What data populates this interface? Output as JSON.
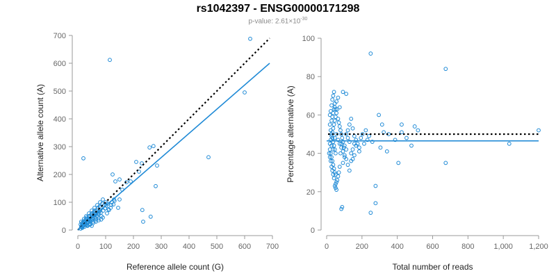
{
  "chart": {
    "title": "rs1042397 - ENSG00000171298",
    "subtitle_prefix": "p-value: 2.61×10",
    "subtitle_exp": "-30"
  },
  "colors": {
    "points": "#1f8ad6",
    "fit": "#1f8ad6",
    "reference": "#000000",
    "axis": "#9a9a9a"
  },
  "chart_data": [
    {
      "type": "scatter",
      "xlabel": "Reference allele count (G)",
      "ylabel": "Alternative allele count (A)",
      "xlim": [
        0,
        700
      ],
      "ylim": [
        0,
        700
      ],
      "x_ticks": [
        "0",
        "100",
        "200",
        "300",
        "400",
        "500",
        "600",
        "700"
      ],
      "y_ticks": [
        "0",
        "100",
        "200",
        "300",
        "400",
        "500",
        "600",
        "700"
      ],
      "fit_line": [
        [
          0,
          0
        ],
        [
          690,
          600
        ]
      ],
      "reference_line": [
        [
          0,
          0
        ],
        [
          690,
          690
        ]
      ],
      "points": [
        [
          115,
          612
        ],
        [
          620,
          688
        ],
        [
          600,
          495
        ],
        [
          470,
          262
        ],
        [
          20,
          258
        ],
        [
          125,
          200
        ],
        [
          150,
          182
        ],
        [
          135,
          175
        ],
        [
          175,
          172
        ],
        [
          210,
          245
        ],
        [
          230,
          240
        ],
        [
          258,
          297
        ],
        [
          272,
          302
        ],
        [
          285,
          232
        ],
        [
          280,
          158
        ],
        [
          235,
          30
        ],
        [
          232,
          72
        ],
        [
          262,
          48
        ],
        [
          220,
          210
        ],
        [
          190,
          175
        ],
        [
          160,
          145
        ],
        [
          150,
          110
        ],
        [
          145,
          80
        ],
        [
          100,
          100
        ],
        [
          95,
          90
        ],
        [
          120,
          90
        ],
        [
          110,
          75
        ],
        [
          130,
          110
        ],
        [
          105,
          60
        ],
        [
          90,
          45
        ],
        [
          80,
          70
        ],
        [
          75,
          60
        ],
        [
          70,
          50
        ],
        [
          65,
          40
        ],
        [
          60,
          55
        ],
        [
          55,
          45
        ],
        [
          50,
          35
        ],
        [
          45,
          30
        ],
        [
          40,
          38
        ],
        [
          35,
          25
        ],
        [
          30,
          20
        ],
        [
          25,
          18
        ],
        [
          20,
          15
        ],
        [
          15,
          10
        ],
        [
          10,
          5
        ],
        [
          12,
          12
        ],
        [
          18,
          22
        ],
        [
          22,
          28
        ],
        [
          28,
          32
        ],
        [
          32,
          28
        ],
        [
          38,
          42
        ],
        [
          42,
          48
        ],
        [
          48,
          55
        ],
        [
          52,
          40
        ],
        [
          58,
          65
        ],
        [
          62,
          45
        ],
        [
          68,
          72
        ],
        [
          72,
          58
        ],
        [
          78,
          85
        ],
        [
          82,
          62
        ],
        [
          88,
          95
        ],
        [
          92,
          70
        ],
        [
          98,
          78
        ],
        [
          102,
          88
        ],
        [
          108,
          95
        ],
        [
          112,
          72
        ],
        [
          118,
          80
        ],
        [
          122,
          100
        ],
        [
          128,
          92
        ],
        [
          132,
          105
        ],
        [
          15,
          25
        ],
        [
          25,
          35
        ],
        [
          35,
          15
        ],
        [
          45,
          20
        ],
        [
          55,
          25
        ],
        [
          65,
          30
        ],
        [
          75,
          35
        ],
        [
          85,
          50
        ],
        [
          16,
          8
        ],
        [
          24,
          12
        ],
        [
          34,
          18
        ],
        [
          44,
          22
        ],
        [
          54,
          30
        ],
        [
          64,
          35
        ],
        [
          74,
          42
        ],
        [
          84,
          38
        ],
        [
          10,
          20
        ],
        [
          20,
          30
        ],
        [
          30,
          40
        ],
        [
          40,
          50
        ],
        [
          50,
          60
        ],
        [
          60,
          70
        ],
        [
          40,
          20
        ],
        [
          50,
          15
        ],
        [
          14,
          16
        ],
        [
          18,
          14
        ],
        [
          26,
          24
        ],
        [
          36,
          30
        ],
        [
          46,
          42
        ],
        [
          56,
          50
        ],
        [
          66,
          58
        ],
        [
          76,
          66
        ],
        [
          30,
          50
        ],
        [
          40,
          60
        ],
        [
          50,
          70
        ],
        [
          60,
          80
        ],
        [
          70,
          90
        ],
        [
          80,
          100
        ],
        [
          90,
          110
        ],
        [
          12,
          30
        ],
        [
          22,
          40
        ],
        [
          32,
          45
        ],
        [
          42,
          35
        ],
        [
          52,
          52
        ],
        [
          62,
          62
        ],
        [
          72,
          78
        ],
        [
          82,
          82
        ]
      ]
    },
    {
      "type": "scatter",
      "xlabel": "Total number of reads",
      "ylabel": "Percentage alternative (A)",
      "xlim": [
        0,
        1300
      ],
      "ylim": [
        0,
        100
      ],
      "x_ticks": [
        "0",
        "200",
        "400",
        "600",
        "800",
        "1,000",
        "1,200"
      ],
      "y_ticks": [
        "0",
        "20",
        "40",
        "60",
        "80",
        "100"
      ],
      "fit_y": 46.5,
      "reference_y": 50,
      "points": [
        [
          270,
          92
        ],
        [
          730,
          84
        ],
        [
          1300,
          52
        ],
        [
          1120,
          45
        ],
        [
          730,
          35
        ],
        [
          440,
          35
        ],
        [
          300,
          14
        ],
        [
          270,
          9
        ],
        [
          300,
          23
        ],
        [
          90,
          11
        ],
        [
          95,
          12
        ],
        [
          120,
          71
        ],
        [
          100,
          72
        ],
        [
          60,
          21
        ],
        [
          55,
          22
        ],
        [
          320,
          60
        ],
        [
          340,
          55
        ],
        [
          350,
          51
        ],
        [
          460,
          55
        ],
        [
          460,
          51
        ],
        [
          540,
          54
        ],
        [
          560,
          52
        ],
        [
          490,
          48
        ],
        [
          420,
          47
        ],
        [
          380,
          50
        ],
        [
          520,
          44
        ],
        [
          370,
          41
        ],
        [
          330,
          43
        ],
        [
          280,
          46
        ],
        [
          250,
          47
        ],
        [
          230,
          45
        ],
        [
          210,
          48
        ],
        [
          200,
          41
        ],
        [
          180,
          44
        ],
        [
          170,
          39
        ],
        [
          160,
          37
        ],
        [
          150,
          36
        ],
        [
          140,
          46
        ],
        [
          130,
          48
        ],
        [
          120,
          42
        ],
        [
          110,
          38
        ],
        [
          105,
          43
        ],
        [
          100,
          35
        ],
        [
          90,
          45
        ],
        [
          85,
          40
        ],
        [
          80,
          33
        ],
        [
          75,
          30
        ],
        [
          70,
          28
        ],
        [
          65,
          26
        ],
        [
          60,
          25
        ],
        [
          55,
          24
        ],
        [
          50,
          23
        ],
        [
          45,
          27
        ],
        [
          40,
          29
        ],
        [
          35,
          31
        ],
        [
          30,
          33
        ],
        [
          25,
          36
        ],
        [
          20,
          38
        ],
        [
          15,
          40
        ],
        [
          20,
          45
        ],
        [
          25,
          47
        ],
        [
          30,
          49
        ],
        [
          35,
          51
        ],
        [
          40,
          53
        ],
        [
          45,
          55
        ],
        [
          50,
          57
        ],
        [
          55,
          59
        ],
        [
          60,
          61
        ],
        [
          65,
          63
        ],
        [
          70,
          58
        ],
        [
          75,
          56
        ],
        [
          80,
          54
        ],
        [
          85,
          52
        ],
        [
          90,
          50
        ],
        [
          95,
          48
        ],
        [
          100,
          46
        ],
        [
          110,
          44
        ],
        [
          120,
          50
        ],
        [
          130,
          52
        ],
        [
          140,
          55
        ],
        [
          150,
          58
        ],
        [
          160,
          53
        ],
        [
          170,
          49
        ],
        [
          180,
          47
        ],
        [
          190,
          45
        ],
        [
          200,
          43
        ],
        [
          220,
          50
        ],
        [
          240,
          52
        ],
        [
          260,
          49
        ],
        [
          20,
          60
        ],
        [
          25,
          62
        ],
        [
          30,
          65
        ],
        [
          35,
          68
        ],
        [
          40,
          70
        ],
        [
          45,
          72
        ],
        [
          50,
          66
        ],
        [
          55,
          63
        ],
        [
          20,
          55
        ],
        [
          25,
          52
        ],
        [
          30,
          50
        ],
        [
          35,
          48
        ],
        [
          40,
          46
        ],
        [
          45,
          44
        ],
        [
          50,
          42
        ],
        [
          55,
          40
        ],
        [
          20,
          42
        ],
        [
          25,
          40
        ],
        [
          30,
          38
        ],
        [
          35,
          36
        ],
        [
          40,
          34
        ],
        [
          45,
          32
        ],
        [
          50,
          30
        ],
        [
          55,
          29
        ],
        [
          30,
          57
        ],
        [
          35,
          59
        ],
        [
          40,
          61
        ],
        [
          45,
          63
        ],
        [
          50,
          64
        ],
        [
          60,
          67
        ],
        [
          70,
          69
        ],
        [
          80,
          64
        ],
        [
          30,
          44
        ],
        [
          40,
          42
        ],
        [
          50,
          48
        ],
        [
          60,
          50
        ],
        [
          70,
          47
        ],
        [
          80,
          45
        ],
        [
          90,
          43
        ],
        [
          100,
          41
        ],
        [
          110,
          39
        ],
        [
          120,
          37
        ],
        [
          130,
          34
        ],
        [
          140,
          31
        ],
        [
          150,
          40
        ],
        [
          160,
          42
        ],
        [
          170,
          45
        ]
      ]
    }
  ]
}
